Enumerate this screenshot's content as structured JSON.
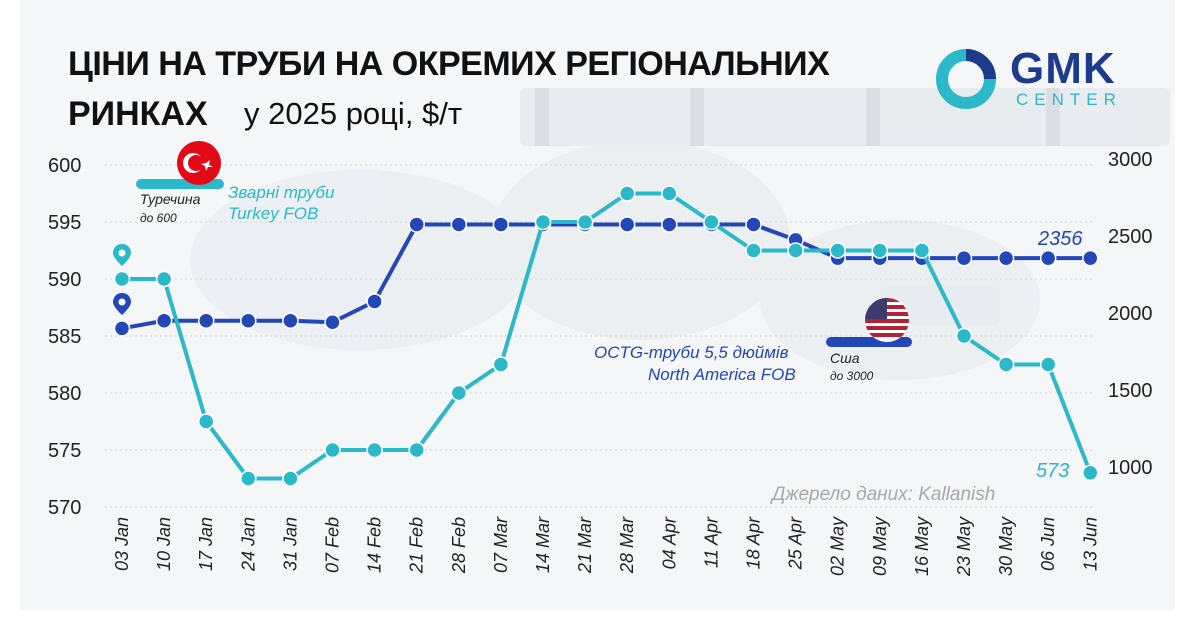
{
  "header": {
    "title_line1": "ЦІНИ НА ТРУБИ НА ОКРЕМИХ РЕГІОНАЛЬНИХ",
    "title_line2": "РИНКАХ",
    "title_tail": "у 2025 році, $/т"
  },
  "logo": {
    "brand": "GMK",
    "sub": "CENTER"
  },
  "source": "Джерело даних: Kallanish",
  "annotations": {
    "turkey_country": "Туречина",
    "turkey_range": "до 600",
    "turkey_series_line1": "Зварні труби",
    "turkey_series_line2": "Turkey FOB",
    "usa_country": "Сша",
    "usa_range": "до 3000",
    "usa_series_line1": "OCTG-труби 5,5 дюймів",
    "usa_series_line2": "North America FOB",
    "turkey_end_value": "573",
    "usa_end_value": "2356"
  },
  "colors": {
    "turkey": "#2bb8c8",
    "usa": "#2447b8",
    "grid": "#d5d5d5",
    "axis_text": "#222222"
  },
  "chart_data": {
    "type": "line",
    "title": "ЦІНИ НА ТРУБИ НА ОКРЕМИХ РЕГІОНАЛЬНИХ РИНКАХ у 2025 році, $/т",
    "categories": [
      "03 Jan",
      "10 Jan",
      "17 Jan",
      "24 Jan",
      "31 Jan",
      "07 Feb",
      "14 Feb",
      "21 Feb",
      "28 Feb",
      "07 Mar",
      "14 Mar",
      "21 Mar",
      "28 Mar",
      "04 Apr",
      "11 Apr",
      "18 Apr",
      "25 Apr",
      "02 May",
      "09 May",
      "16 May",
      "23 May",
      "30 May",
      "06 Jun",
      "13 Jun"
    ],
    "y_left": {
      "min": 570,
      "max": 600,
      "ticks": [
        600,
        595,
        590,
        585,
        580,
        575,
        570
      ]
    },
    "y_right": {
      "min": 800,
      "max": 3000,
      "ticks": [
        3000,
        2500,
        2000,
        1500,
        1000
      ]
    },
    "series": [
      {
        "name": "Зварні труби Turkey FOB",
        "axis": "left",
        "values": [
          590,
          590,
          577.5,
          572.5,
          572.5,
          575,
          575,
          575,
          580,
          582.5,
          595,
          595,
          597.5,
          597.5,
          595,
          592.5,
          592.5,
          592.5,
          592.5,
          592.5,
          585,
          582.5,
          582.5,
          573
        ]
      },
      {
        "name": "OCTG-труби 5,5 дюймів North America FOB",
        "axis": "right",
        "values": [
          1900,
          1950,
          1950,
          1950,
          1950,
          1940,
          2075,
          2575,
          2575,
          2575,
          2575,
          2575,
          2575,
          2575,
          2575,
          2575,
          2475,
          2356,
          2356,
          2356,
          2356,
          2356,
          2356,
          2356
        ]
      }
    ],
    "grid": true,
    "legend": "inline labels"
  }
}
